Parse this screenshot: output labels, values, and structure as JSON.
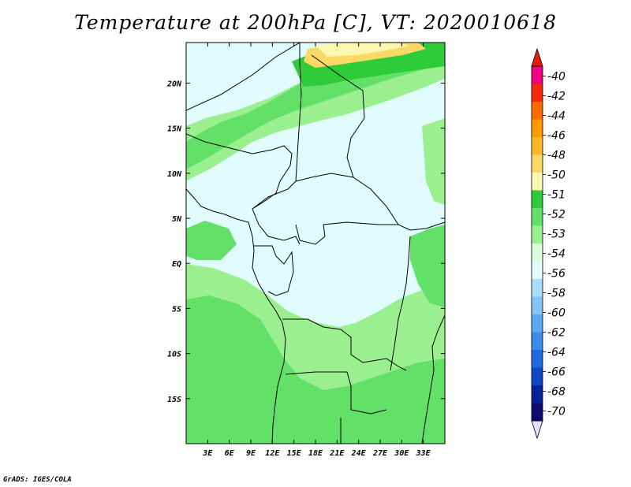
{
  "title": "Temperature at 200hPa [C], VT: 2020010618",
  "credit": "GrADS: IGES/COLA",
  "map": {
    "lon_range": [
      0,
      36
    ],
    "lat_range": [
      -20,
      24.5
    ],
    "x_ticks": [
      "3E",
      "6E",
      "9E",
      "12E",
      "15E",
      "18E",
      "21E",
      "24E",
      "27E",
      "30E",
      "33E"
    ],
    "x_tick_values": [
      3,
      6,
      9,
      12,
      15,
      18,
      21,
      24,
      27,
      30,
      33
    ],
    "y_ticks": [
      "20N",
      "15N",
      "10N",
      "5N",
      "EQ",
      "5S",
      "10S",
      "15S"
    ],
    "y_tick_values": [
      20,
      15,
      10,
      5,
      0,
      -5,
      -10,
      -15
    ]
  },
  "colorbar": {
    "labels": [
      "-40",
      "-42",
      "-44",
      "-46",
      "-48",
      "-50",
      "-51",
      "-52",
      "-53",
      "-54",
      "-56",
      "-58",
      "-60",
      "-62",
      "-64",
      "-66",
      "-68",
      "-70"
    ],
    "colors": [
      "#f00082",
      "#f52a0c",
      "#fa6a00",
      "#fc9a00",
      "#fcb428",
      "#fcd864",
      "#fcf8b0",
      "#2fcc3a",
      "#63e068",
      "#9af08e",
      "#d8ffd8",
      "#e0fcfc",
      "#a8dcfa",
      "#82c4f8",
      "#5aa8f2",
      "#3a8ceb",
      "#1e6ae0",
      "#0e48c8",
      "#06249a",
      "#0c0c70"
    ],
    "top_arrow_color": "#e81a0c",
    "bottom_arrow_color": "#e0e0ff"
  }
}
